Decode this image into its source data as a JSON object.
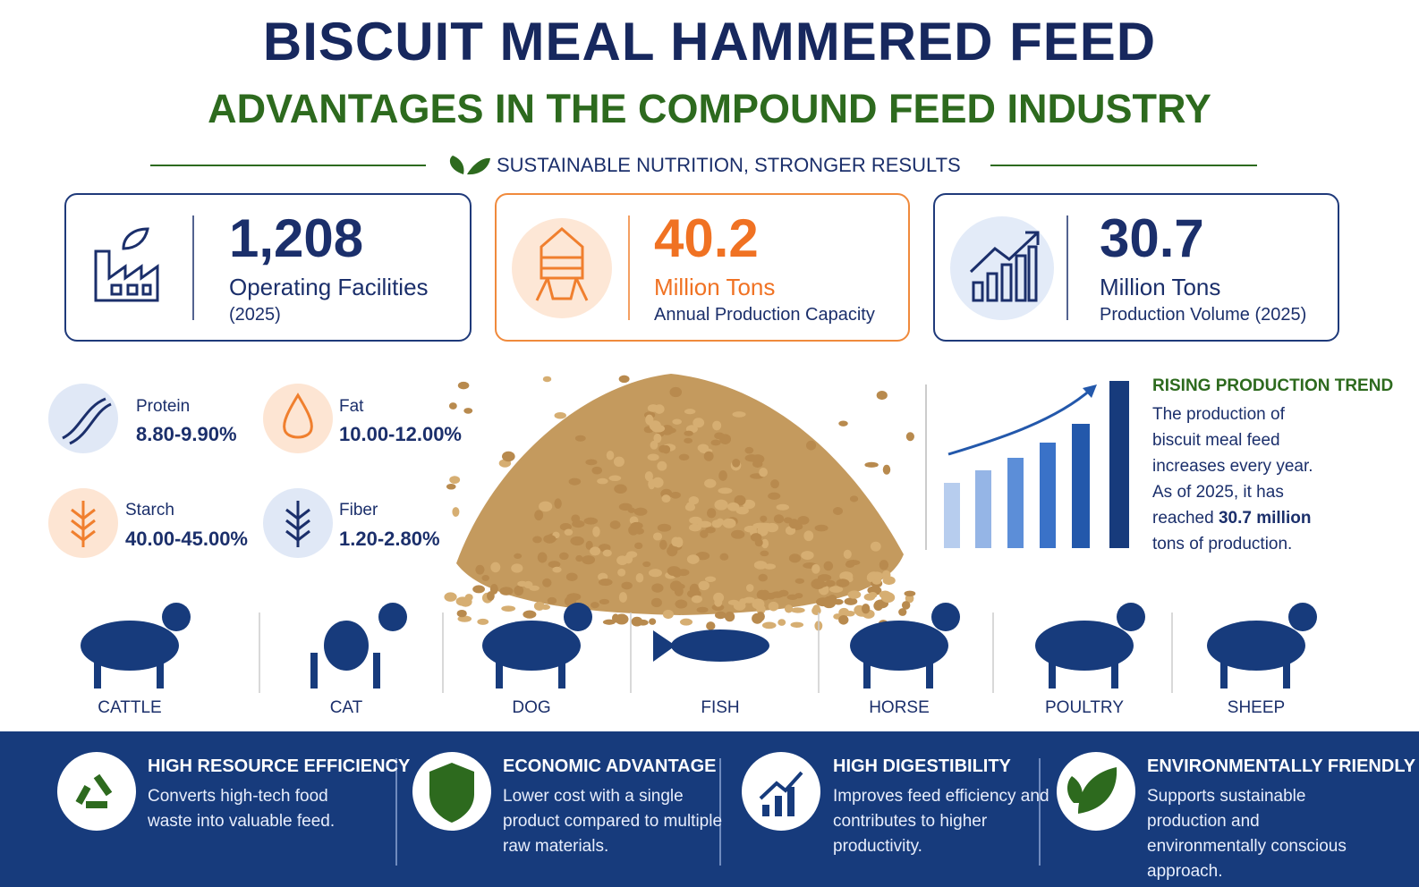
{
  "header": {
    "title": "BISCUIT MEAL HAMMERED FEED",
    "subtitle": "ADVANTAGES IN THE COMPOUND FEED INDUSTRY",
    "tagline": "SUSTAINABLE NUTRITION, STRONGER RESULTS"
  },
  "stats": [
    {
      "value": "1,208",
      "label": "Operating Facilities",
      "note": "(2025)"
    },
    {
      "value": "40.2",
      "label": "Million Tons",
      "note": "Annual Production Capacity"
    },
    {
      "value": "30.7",
      "label": "Million Tons",
      "note": "Production Volume (2025)"
    }
  ],
  "nutrients": [
    {
      "name": "Protein",
      "range": "8.80-9.90%"
    },
    {
      "name": "Fat",
      "range": "10.00-12.00%"
    },
    {
      "name": "Starch",
      "range": "40.00-45.00%"
    },
    {
      "name": "Fiber",
      "range": "1.20-2.80%"
    }
  ],
  "trend": {
    "title": "RISING PRODUCTION TREND",
    "text_before": "The production of biscuit meal feed increases every year. As of 2025, it has reached",
    "highlight": "30.7 million",
    "text_after": "tons of production."
  },
  "animals": [
    "CATTLE",
    "CAT",
    "DOG",
    "FISH",
    "HORSE",
    "POULTRY",
    "SHEEP"
  ],
  "benefits": [
    {
      "title": "HIGH RESOURCE EFFICIENCY",
      "text": "Converts high-tech food waste into valuable feed."
    },
    {
      "title": "ECONOMIC ADVANTAGE",
      "text": "Lower cost with a single product compared to multiple raw materials."
    },
    {
      "title": "HIGH DIGESTIBILITY",
      "text": "Improves feed efficiency and contributes to higher productivity."
    },
    {
      "title": "ENVIRONMENTALLY FRIENDLY",
      "text": "Supports sustainable production and environmentally conscious approach."
    }
  ]
}
